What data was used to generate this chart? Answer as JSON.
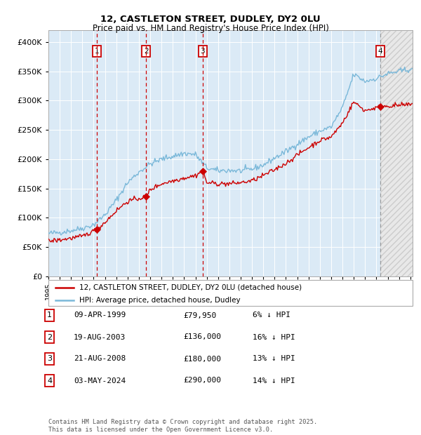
{
  "title": "12, CASTLETON STREET, DUDLEY, DY2 0LU",
  "subtitle": "Price paid vs. HM Land Registry's House Price Index (HPI)",
  "legend_line1": "12, CASTLETON STREET, DUDLEY, DY2 0LU (detached house)",
  "legend_line2": "HPI: Average price, detached house, Dudley",
  "footer": "Contains HM Land Registry data © Crown copyright and database right 2025.\nThis data is licensed under the Open Government Licence v3.0.",
  "transactions": [
    {
      "num": 1,
      "date": "09-APR-1999",
      "price": 79950,
      "pct": "6%",
      "year_x": 1999.27
    },
    {
      "num": 2,
      "date": "19-AUG-2003",
      "price": 136000,
      "pct": "16%",
      "year_x": 2003.63
    },
    {
      "num": 3,
      "date": "21-AUG-2008",
      "price": 180000,
      "pct": "13%",
      "year_x": 2008.64
    },
    {
      "num": 4,
      "date": "03-MAY-2024",
      "price": 290000,
      "pct": "14%",
      "year_x": 2024.34
    }
  ],
  "hpi_color": "#7ab8d9",
  "price_color": "#cc0000",
  "vline_color_red": "#cc0000",
  "vline_color_gray": "#999999",
  "bg_color": "#dbeaf6",
  "grid_color": "#ffffff",
  "hatch_color": "#bbbbbb",
  "ylim": [
    0,
    420000
  ],
  "xlim_start": 1995.0,
  "xlim_end": 2027.2,
  "yticks": [
    0,
    50000,
    100000,
    150000,
    200000,
    250000,
    300000,
    350000,
    400000
  ],
  "xticks": [
    1995,
    1996,
    1997,
    1998,
    1999,
    2000,
    2001,
    2002,
    2003,
    2004,
    2005,
    2006,
    2007,
    2008,
    2009,
    2010,
    2011,
    2012,
    2013,
    2014,
    2015,
    2016,
    2017,
    2018,
    2019,
    2020,
    2021,
    2022,
    2023,
    2024,
    2025,
    2026,
    2027
  ]
}
